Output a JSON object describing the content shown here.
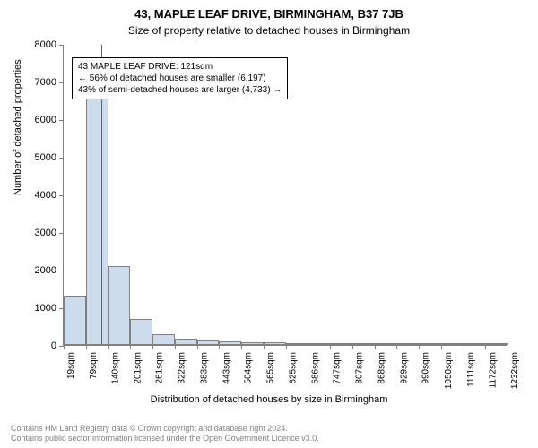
{
  "title": "43, MAPLE LEAF DRIVE, BIRMINGHAM, B37 7JB",
  "subtitle": "Size of property relative to detached houses in Birmingham",
  "ylabel": "Number of detached properties",
  "xlabel": "Distribution of detached houses by size in Birmingham",
  "chart": {
    "type": "histogram",
    "background_color": "#ffffff",
    "bar_fill_color": "#cddcec",
    "bar_border_color": "#808080",
    "axis_color": "#808080",
    "ylim": [
      0,
      8000
    ],
    "ytick_step": 1000,
    "yticks": [
      0,
      1000,
      2000,
      3000,
      4000,
      5000,
      6000,
      7000,
      8000
    ],
    "xticks": [
      "19sqm",
      "79sqm",
      "140sqm",
      "201sqm",
      "261sqm",
      "322sqm",
      "383sqm",
      "443sqm",
      "504sqm",
      "565sqm",
      "625sqm",
      "686sqm",
      "747sqm",
      "807sqm",
      "868sqm",
      "929sqm",
      "990sqm",
      "1050sqm",
      "1111sqm",
      "1172sqm",
      "1232sqm"
    ],
    "bars": [
      1300,
      6800,
      2100,
      680,
      280,
      170,
      120,
      100,
      80,
      60,
      50,
      40,
      30,
      25,
      20,
      15,
      10,
      10,
      8,
      5
    ],
    "marker_position": 1.68,
    "marker_color": "#e03030"
  },
  "annotation": {
    "line1": "43 MAPLE LEAF DRIVE: 121sqm",
    "line2": "← 56% of detached houses are smaller (6,197)",
    "line3": "43% of semi-detached houses are larger (4,733) →"
  },
  "footer": {
    "line1": "Contains HM Land Registry data © Crown copyright and database right 2024.",
    "line2": "Contains public sector information licensed under the Open Government Licence v3.0."
  },
  "styling": {
    "title_fontsize": 13,
    "subtitle_fontsize": 12,
    "axis_label_fontsize": 11,
    "tick_fontsize": 10,
    "annotation_fontsize": 10,
    "footer_fontsize": 9,
    "footer_color": "#808080"
  }
}
